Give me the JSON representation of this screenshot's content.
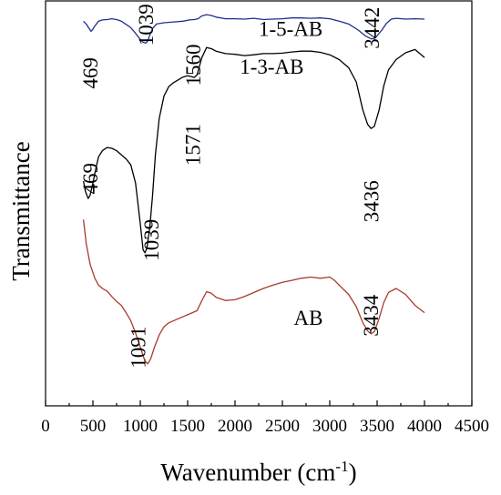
{
  "chart_data": {
    "type": "line",
    "xlabel": "Wavenumber (cm",
    "xlabel_sup": "-1",
    "xlabel_close": ")",
    "ylabel": "Transmittance",
    "xlim": [
      0,
      4500
    ],
    "x_ticks": [
      0,
      500,
      1000,
      1500,
      2000,
      2500,
      3000,
      3500,
      4000,
      4500
    ],
    "x_tick_labels": [
      "0",
      "500",
      "1000",
      "1500",
      "2000",
      "2500",
      "3000",
      "3500",
      "4000",
      "4500"
    ],
    "y_ticks_shown": false,
    "ylim": [
      0,
      100
    ],
    "grid": false,
    "legend": "none",
    "series": [
      {
        "name": "1-5-AB",
        "color": "#1f2f8f",
        "points": [
          [
            400,
            95.0
          ],
          [
            430,
            94.3
          ],
          [
            460,
            93.2
          ],
          [
            480,
            92.5
          ],
          [
            500,
            93.0
          ],
          [
            520,
            93.8
          ],
          [
            560,
            95.0
          ],
          [
            600,
            95.3
          ],
          [
            650,
            95.4
          ],
          [
            700,
            95.6
          ],
          [
            750,
            95.4
          ],
          [
            800,
            95.0
          ],
          [
            850,
            94.2
          ],
          [
            900,
            93.4
          ],
          [
            950,
            92.0
          ],
          [
            1000,
            90.5
          ],
          [
            1030,
            89.8
          ],
          [
            1060,
            89.6
          ],
          [
            1080,
            90.2
          ],
          [
            1100,
            91.5
          ],
          [
            1130,
            93.2
          ],
          [
            1170,
            94.3
          ],
          [
            1250,
            94.6
          ],
          [
            1350,
            94.8
          ],
          [
            1450,
            95.0
          ],
          [
            1520,
            95.3
          ],
          [
            1570,
            95.4
          ],
          [
            1610,
            95.6
          ],
          [
            1650,
            96.3
          ],
          [
            1700,
            96.6
          ],
          [
            1750,
            96.4
          ],
          [
            1800,
            96.0
          ],
          [
            1900,
            95.6
          ],
          [
            2000,
            95.6
          ],
          [
            2100,
            95.5
          ],
          [
            2200,
            95.7
          ],
          [
            2300,
            95.4
          ],
          [
            2400,
            95.5
          ],
          [
            2500,
            95.6
          ],
          [
            2600,
            95.8
          ],
          [
            2700,
            95.8
          ],
          [
            2800,
            95.7
          ],
          [
            2900,
            95.8
          ],
          [
            3000,
            95.6
          ],
          [
            3100,
            95.0
          ],
          [
            3200,
            94.3
          ],
          [
            3300,
            92.8
          ],
          [
            3380,
            91.3
          ],
          [
            3440,
            90.6
          ],
          [
            3480,
            90.8
          ],
          [
            3550,
            92.8
          ],
          [
            3600,
            94.5
          ],
          [
            3650,
            95.5
          ],
          [
            3700,
            95.7
          ],
          [
            3800,
            95.5
          ],
          [
            3900,
            95.6
          ],
          [
            4000,
            95.5
          ]
        ]
      },
      {
        "name": "1-3-AB",
        "color": "#000000",
        "points": [
          [
            400,
            55.5
          ],
          [
            420,
            53.0
          ],
          [
            450,
            51.2
          ],
          [
            470,
            52.0
          ],
          [
            500,
            55.0
          ],
          [
            530,
            58.5
          ],
          [
            560,
            61.5
          ],
          [
            600,
            63.0
          ],
          [
            650,
            63.8
          ],
          [
            700,
            63.6
          ],
          [
            750,
            63.0
          ],
          [
            800,
            62.0
          ],
          [
            850,
            61.0
          ],
          [
            900,
            59.5
          ],
          [
            950,
            55.0
          ],
          [
            1000,
            45.0
          ],
          [
            1030,
            38.5
          ],
          [
            1050,
            37.8
          ],
          [
            1070,
            39.0
          ],
          [
            1100,
            44.0
          ],
          [
            1130,
            52.0
          ],
          [
            1160,
            62.0
          ],
          [
            1200,
            71.0
          ],
          [
            1250,
            76.5
          ],
          [
            1300,
            78.8
          ],
          [
            1350,
            79.8
          ],
          [
            1400,
            80.5
          ],
          [
            1450,
            81.2
          ],
          [
            1500,
            81.5
          ],
          [
            1540,
            81.3
          ],
          [
            1571,
            81.1
          ],
          [
            1600,
            81.8
          ],
          [
            1650,
            86.0
          ],
          [
            1700,
            88.5
          ],
          [
            1750,
            88.2
          ],
          [
            1800,
            87.6
          ],
          [
            1900,
            87.0
          ],
          [
            2000,
            86.8
          ],
          [
            2100,
            86.5
          ],
          [
            2200,
            86.7
          ],
          [
            2300,
            87.0
          ],
          [
            2400,
            87.0
          ],
          [
            2500,
            87.1
          ],
          [
            2600,
            87.4
          ],
          [
            2700,
            87.6
          ],
          [
            2800,
            87.6
          ],
          [
            2900,
            87.3
          ],
          [
            3000,
            86.7
          ],
          [
            3100,
            85.5
          ],
          [
            3200,
            83.5
          ],
          [
            3280,
            80.0
          ],
          [
            3350,
            73.0
          ],
          [
            3400,
            69.5
          ],
          [
            3436,
            68.5
          ],
          [
            3470,
            69.0
          ],
          [
            3520,
            73.0
          ],
          [
            3570,
            79.0
          ],
          [
            3620,
            83.0
          ],
          [
            3700,
            85.5
          ],
          [
            3800,
            87.2
          ],
          [
            3900,
            88.0
          ],
          [
            4000,
            86.0
          ]
        ]
      },
      {
        "name": "AB",
        "color": "#a83a2e",
        "points": [
          [
            400,
            46.0
          ],
          [
            430,
            40.0
          ],
          [
            470,
            35.0
          ],
          [
            520,
            31.5
          ],
          [
            560,
            29.8
          ],
          [
            600,
            29.0
          ],
          [
            650,
            28.3
          ],
          [
            700,
            27.0
          ],
          [
            750,
            25.8
          ],
          [
            800,
            24.8
          ],
          [
            850,
            23.0
          ],
          [
            900,
            21.0
          ],
          [
            950,
            18.0
          ],
          [
            1000,
            14.5
          ],
          [
            1050,
            11.0
          ],
          [
            1080,
            10.4
          ],
          [
            1110,
            11.6
          ],
          [
            1150,
            14.5
          ],
          [
            1200,
            17.5
          ],
          [
            1250,
            19.5
          ],
          [
            1300,
            20.5
          ],
          [
            1400,
            21.5
          ],
          [
            1500,
            22.5
          ],
          [
            1600,
            23.5
          ],
          [
            1650,
            26.0
          ],
          [
            1700,
            28.2
          ],
          [
            1750,
            27.8
          ],
          [
            1800,
            26.8
          ],
          [
            1900,
            26.0
          ],
          [
            2000,
            26.2
          ],
          [
            2100,
            27.0
          ],
          [
            2200,
            28.0
          ],
          [
            2300,
            29.0
          ],
          [
            2400,
            29.8
          ],
          [
            2500,
            30.5
          ],
          [
            2600,
            31.0
          ],
          [
            2700,
            31.5
          ],
          [
            2800,
            31.8
          ],
          [
            2900,
            31.5
          ],
          [
            3000,
            31.8
          ],
          [
            3050,
            31.0
          ],
          [
            3100,
            29.8
          ],
          [
            3200,
            27.5
          ],
          [
            3280,
            24.5
          ],
          [
            3350,
            20.5
          ],
          [
            3400,
            18.5
          ],
          [
            3434,
            17.8
          ],
          [
            3470,
            18.3
          ],
          [
            3520,
            21.5
          ],
          [
            3570,
            25.5
          ],
          [
            3620,
            28.0
          ],
          [
            3700,
            29.0
          ],
          [
            3800,
            27.5
          ],
          [
            3900,
            24.8
          ],
          [
            4000,
            23.0
          ]
        ]
      }
    ],
    "annotations": [
      {
        "series": "1-5-AB",
        "text": "469",
        "x": 469,
        "y": 92.5
      },
      {
        "series": "1-5-AB",
        "text": "1039",
        "x": 1039,
        "y": 89.6
      },
      {
        "series": "1-5-AB",
        "text": "1560",
        "x": 1560,
        "y": 95.4
      },
      {
        "series": "1-5-AB",
        "text": "3442",
        "x": 3442,
        "y": 90.6
      },
      {
        "series": "1-3-AB",
        "text": "469",
        "x": 469,
        "y": 51.2
      },
      {
        "series": "1-3-AB",
        "text": "1039",
        "x": 1039,
        "y": 37.8
      },
      {
        "series": "1-3-AB",
        "text": "1571",
        "x": 1571,
        "y": 81.1
      },
      {
        "series": "1-3-AB",
        "text": "3436",
        "x": 3436,
        "y": 68.5
      },
      {
        "series": "AB",
        "text": "1091",
        "x": 1091,
        "y": 10.4
      },
      {
        "series": "AB",
        "text": "3434",
        "x": 3434,
        "y": 17.8
      }
    ]
  }
}
